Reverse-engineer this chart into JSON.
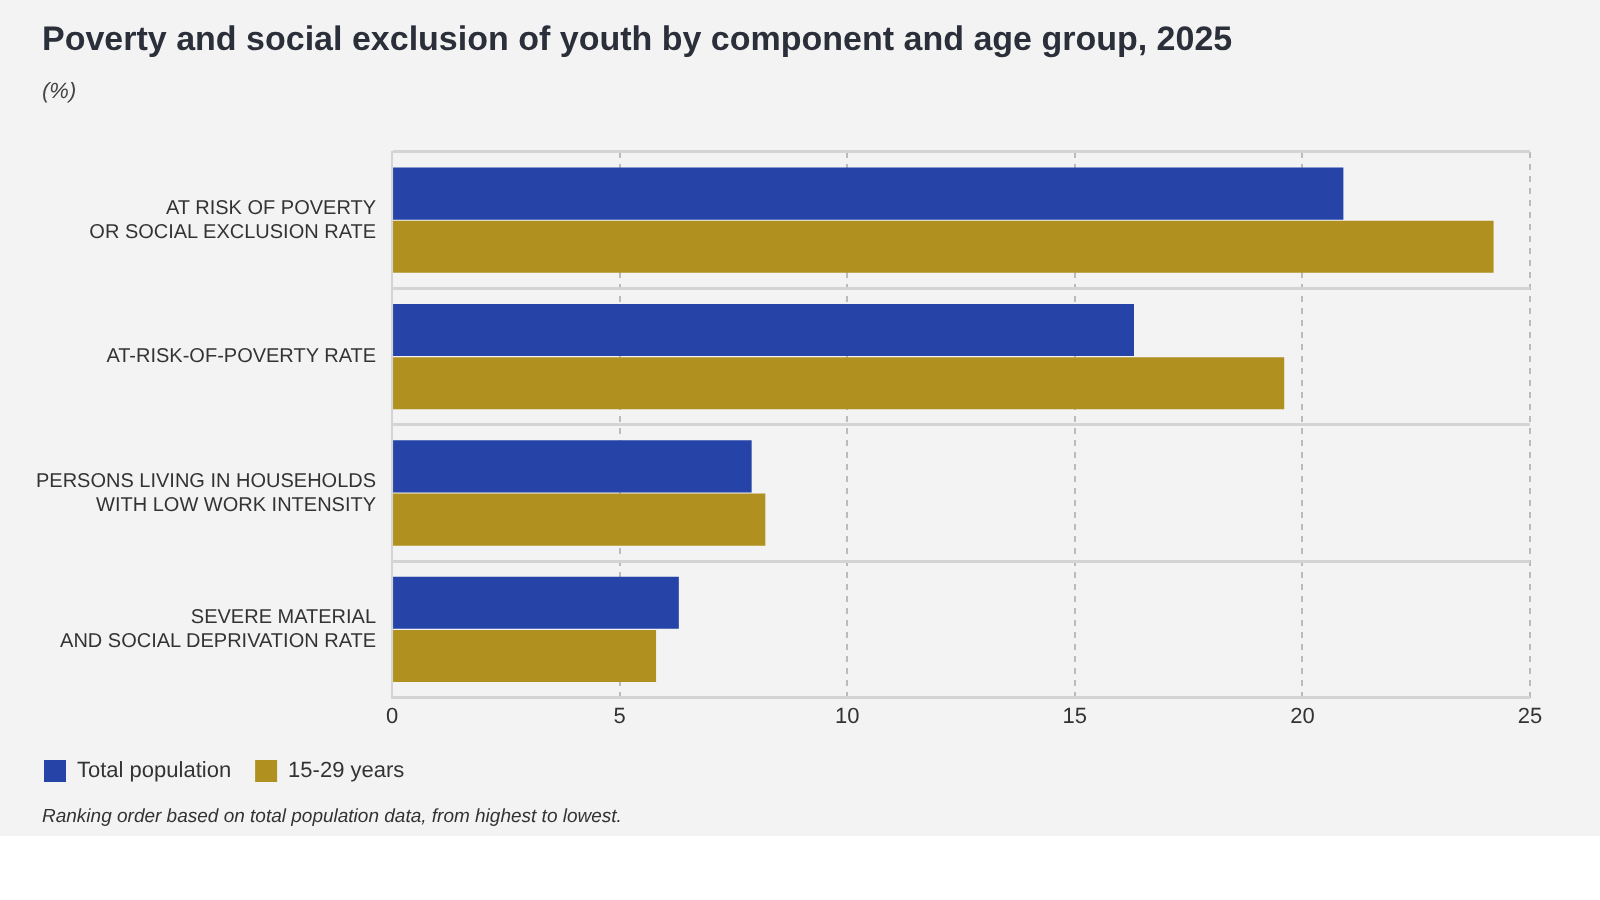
{
  "chart_data": {
    "type": "bar",
    "orientation": "horizontal",
    "title": "Poverty and social exclusion of youth by component and age group, 2025",
    "subtitle": "(%)",
    "categories": [
      "AT RISK OF POVERTY\nOR SOCIAL EXCLUSION RATE",
      "AT-RISK-OF-POVERTY RATE",
      "PERSONS LIVING IN HOUSEHOLDS\nWITH LOW WORK INTENSITY",
      "SEVERE MATERIAL\nAND SOCIAL DEPRIVATION RATE"
    ],
    "series": [
      {
        "name": "Total population",
        "color": "#2644a7",
        "values": [
          20.9,
          16.3,
          7.9,
          6.3
        ]
      },
      {
        "name": "15-29 years",
        "color": "#b09120",
        "values": [
          24.2,
          19.6,
          8.2,
          5.8
        ]
      }
    ],
    "xlim": [
      0,
      25
    ],
    "xticks": [
      0,
      5,
      10,
      15,
      20,
      25
    ],
    "grid": true,
    "legend": "bottom left",
    "annotations": [
      "Ranking order based on total population data, from highest to lowest."
    ]
  }
}
